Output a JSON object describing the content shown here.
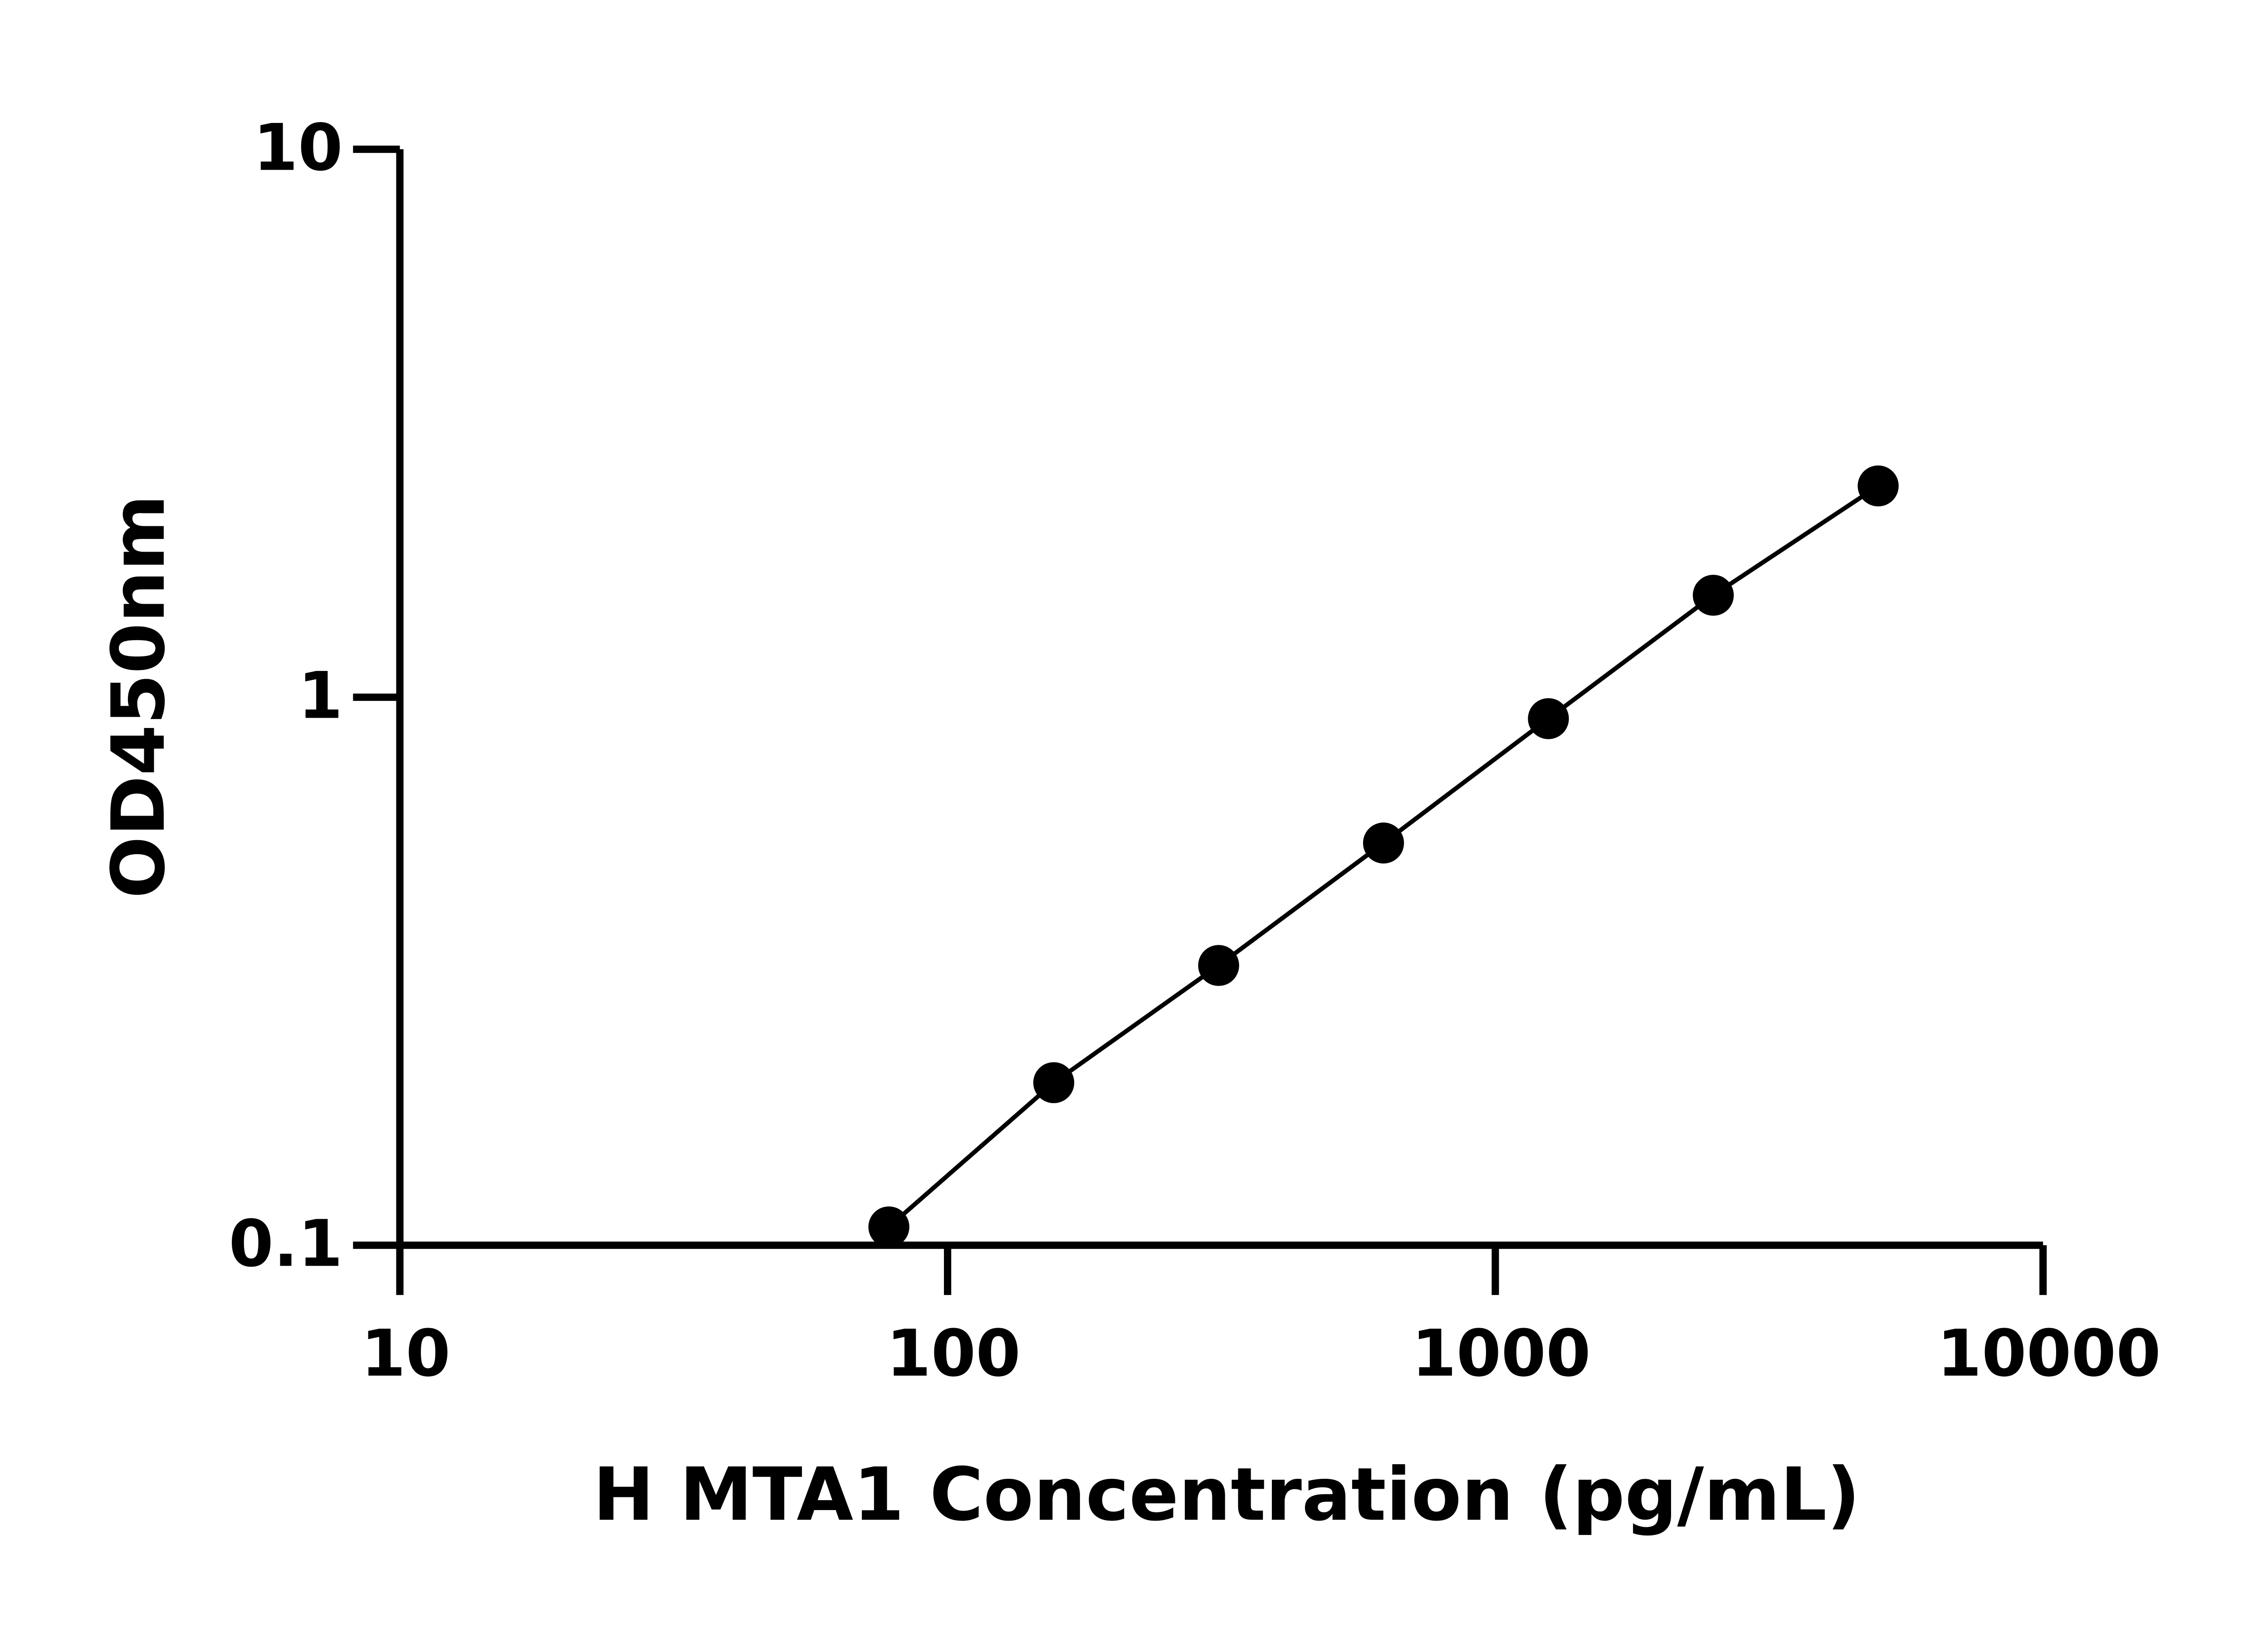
{
  "chart_data": {
    "type": "scatter-line",
    "xlabel": "H MTA1 Concentration (pg/mL)",
    "ylabel": "OD450nm",
    "x": [
      78.125,
      156.25,
      312.5,
      625,
      1250,
      2500,
      5000
    ],
    "series": [
      {
        "color": "#000000",
        "values": [
          0.108,
          0.198,
          0.324,
          0.542,
          0.914,
          1.535,
          2.43
        ]
      }
    ],
    "xscale": "log",
    "yscale": "log",
    "xlim": [
      10,
      10000
    ],
    "ylim": [
      0.1,
      10
    ],
    "xticks": [
      10,
      100,
      1000,
      10000
    ],
    "yticks": [
      0.1,
      1,
      10
    ],
    "grid": false
  }
}
